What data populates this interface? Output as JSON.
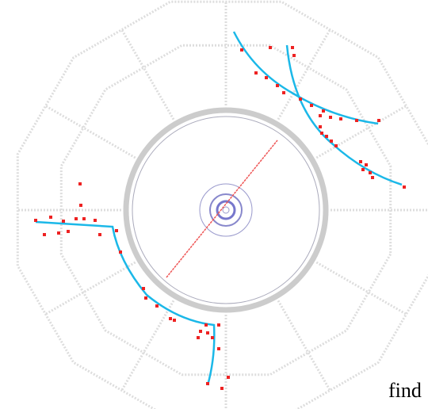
{
  "caption": "find"
}
